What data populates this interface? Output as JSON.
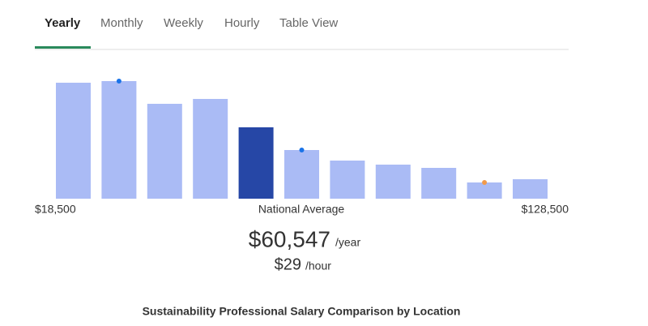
{
  "tabs": [
    "Yearly",
    "Monthly",
    "Weekly",
    "Hourly",
    "Table View"
  ],
  "active_tab": 0,
  "chart_data": {
    "type": "bar",
    "title": "Sustainability Professional Salary Comparison by Location",
    "categories": [
      null,
      null,
      null,
      null,
      null,
      null,
      null,
      null,
      null,
      null,
      null
    ],
    "values": [
      143,
      145,
      117,
      123,
      88,
      60,
      47,
      42,
      38,
      20,
      24
    ],
    "ylim": [
      0,
      150
    ],
    "color": "#aabbf5",
    "highlight_index": 4,
    "highlight_color": "#2647a6",
    "dots": [
      {
        "index": 1,
        "color": "#1a73e8"
      },
      {
        "index": 5,
        "color": "#1a73e8"
      },
      {
        "index": 9,
        "color": "#f29a4a"
      }
    ],
    "min_label": "$18,500",
    "max_label": "$128,500",
    "highlight_label": "National Average"
  },
  "salary": {
    "yearly": "$60,547",
    "year_unit": "/year",
    "hourly": "$29",
    "hour_unit": "/hour"
  }
}
